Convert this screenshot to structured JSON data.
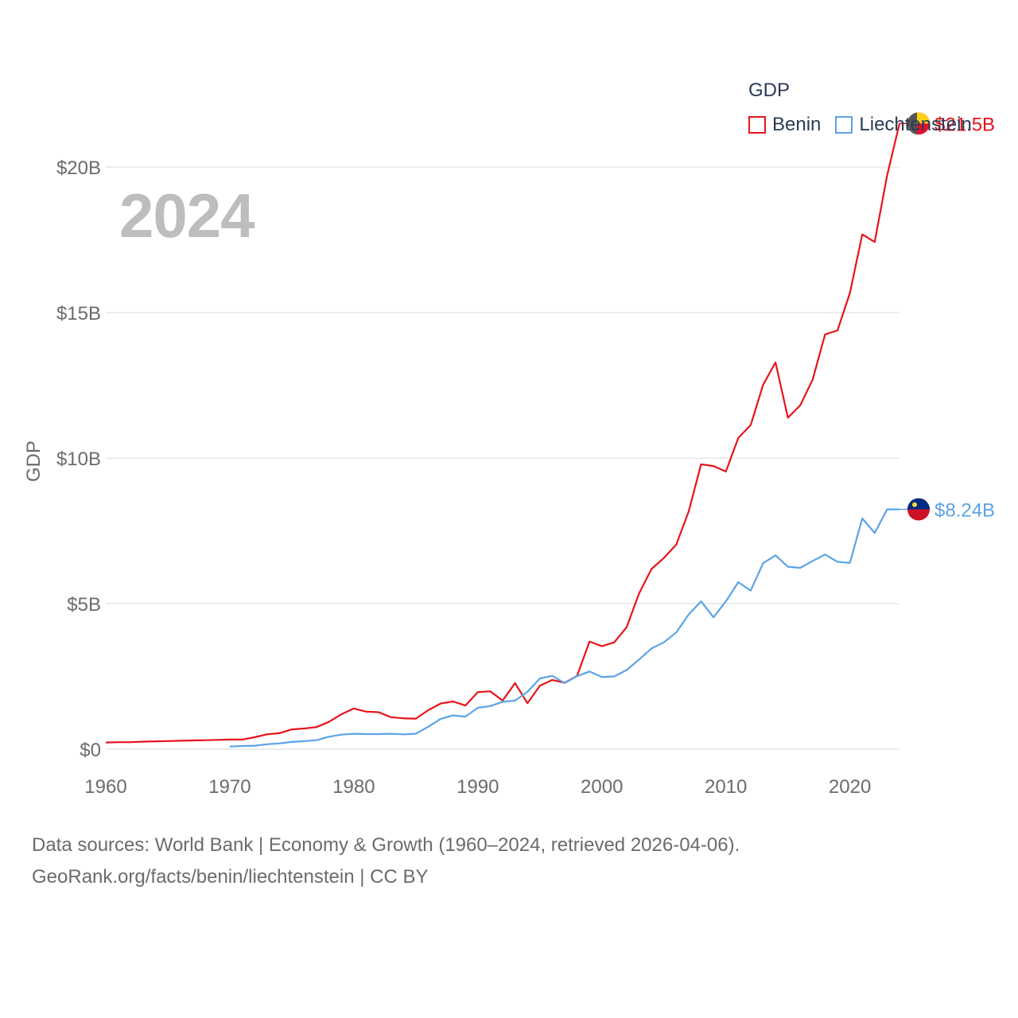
{
  "legend": {
    "title": "GDP",
    "items": [
      {
        "name": "Benin",
        "color": "#e8131b"
      },
      {
        "name": "Liechtenstein",
        "color": "#5ba4e6"
      }
    ]
  },
  "year_label": "2024",
  "footer": {
    "line1": "Data sources: World Bank | Economy & Growth (1960–2024, retrieved 2026-04-06).",
    "line2": "GeoRank.org/facts/benin/liechtenstein | CC BY"
  },
  "chart_data": {
    "type": "line",
    "ylabel": "GDP",
    "xlabel": "",
    "xlim": [
      1960,
      2024
    ],
    "ylim": [
      0,
      22
    ],
    "xticks": [
      1960,
      1970,
      1980,
      1990,
      2000,
      2010,
      2020
    ],
    "yticks": [
      0,
      5,
      10,
      15,
      20
    ],
    "ytick_labels": [
      "$0",
      "$5B",
      "$10B",
      "$15B",
      "$20B"
    ],
    "series": [
      {
        "name": "Benin",
        "color": "#e8131b",
        "end_label": "$21.5B",
        "x": [
          1960,
          1961,
          1962,
          1963,
          1964,
          1965,
          1966,
          1967,
          1968,
          1969,
          1970,
          1971,
          1972,
          1973,
          1974,
          1975,
          1976,
          1977,
          1978,
          1979,
          1980,
          1981,
          1982,
          1983,
          1984,
          1985,
          1986,
          1987,
          1988,
          1989,
          1990,
          1991,
          1992,
          1993,
          1994,
          1995,
          1996,
          1997,
          1998,
          1999,
          2000,
          2001,
          2002,
          2003,
          2004,
          2005,
          2006,
          2007,
          2008,
          2009,
          2010,
          2011,
          2012,
          2013,
          2014,
          2015,
          2016,
          2017,
          2018,
          2019,
          2020,
          2021,
          2022,
          2023,
          2024
        ],
        "values": [
          0.23,
          0.24,
          0.24,
          0.26,
          0.27,
          0.28,
          0.29,
          0.3,
          0.31,
          0.32,
          0.33,
          0.33,
          0.41,
          0.51,
          0.55,
          0.68,
          0.71,
          0.76,
          0.94,
          1.2,
          1.4,
          1.29,
          1.27,
          1.1,
          1.06,
          1.05,
          1.34,
          1.57,
          1.64,
          1.5,
          1.96,
          1.99,
          1.67,
          2.27,
          1.58,
          2.18,
          2.38,
          2.28,
          2.52,
          3.7,
          3.54,
          3.67,
          4.19,
          5.35,
          6.19,
          6.57,
          7.03,
          8.17,
          9.79,
          9.73,
          9.54,
          10.69,
          11.14,
          12.52,
          13.29,
          11.39,
          11.82,
          12.7,
          14.25,
          14.39,
          15.67,
          17.69,
          17.43,
          19.71,
          21.5
        ]
      },
      {
        "name": "Liechtenstein",
        "color": "#5ba4e6",
        "end_label": "$8.24B",
        "x": [
          1970,
          1971,
          1972,
          1973,
          1974,
          1975,
          1976,
          1977,
          1978,
          1979,
          1980,
          1981,
          1982,
          1983,
          1984,
          1985,
          1986,
          1987,
          1988,
          1989,
          1990,
          1991,
          1992,
          1993,
          1994,
          1995,
          1996,
          1997,
          1998,
          1999,
          2000,
          2001,
          2002,
          2003,
          2004,
          2005,
          2006,
          2007,
          2008,
          2009,
          2010,
          2011,
          2012,
          2013,
          2014,
          2015,
          2016,
          2017,
          2018,
          2019,
          2020,
          2021,
          2022,
          2023,
          2024
        ],
        "values": [
          0.09,
          0.11,
          0.12,
          0.17,
          0.2,
          0.25,
          0.28,
          0.31,
          0.43,
          0.5,
          0.53,
          0.52,
          0.52,
          0.53,
          0.51,
          0.53,
          0.77,
          1.04,
          1.16,
          1.12,
          1.42,
          1.48,
          1.63,
          1.67,
          1.97,
          2.43,
          2.52,
          2.27,
          2.51,
          2.67,
          2.48,
          2.5,
          2.72,
          3.08,
          3.46,
          3.67,
          4.01,
          4.63,
          5.08,
          4.53,
          5.08,
          5.74,
          5.45,
          6.39,
          6.66,
          6.27,
          6.23,
          6.47,
          6.69,
          6.44,
          6.4,
          7.93,
          7.43,
          8.24,
          8.24
        ]
      }
    ]
  }
}
